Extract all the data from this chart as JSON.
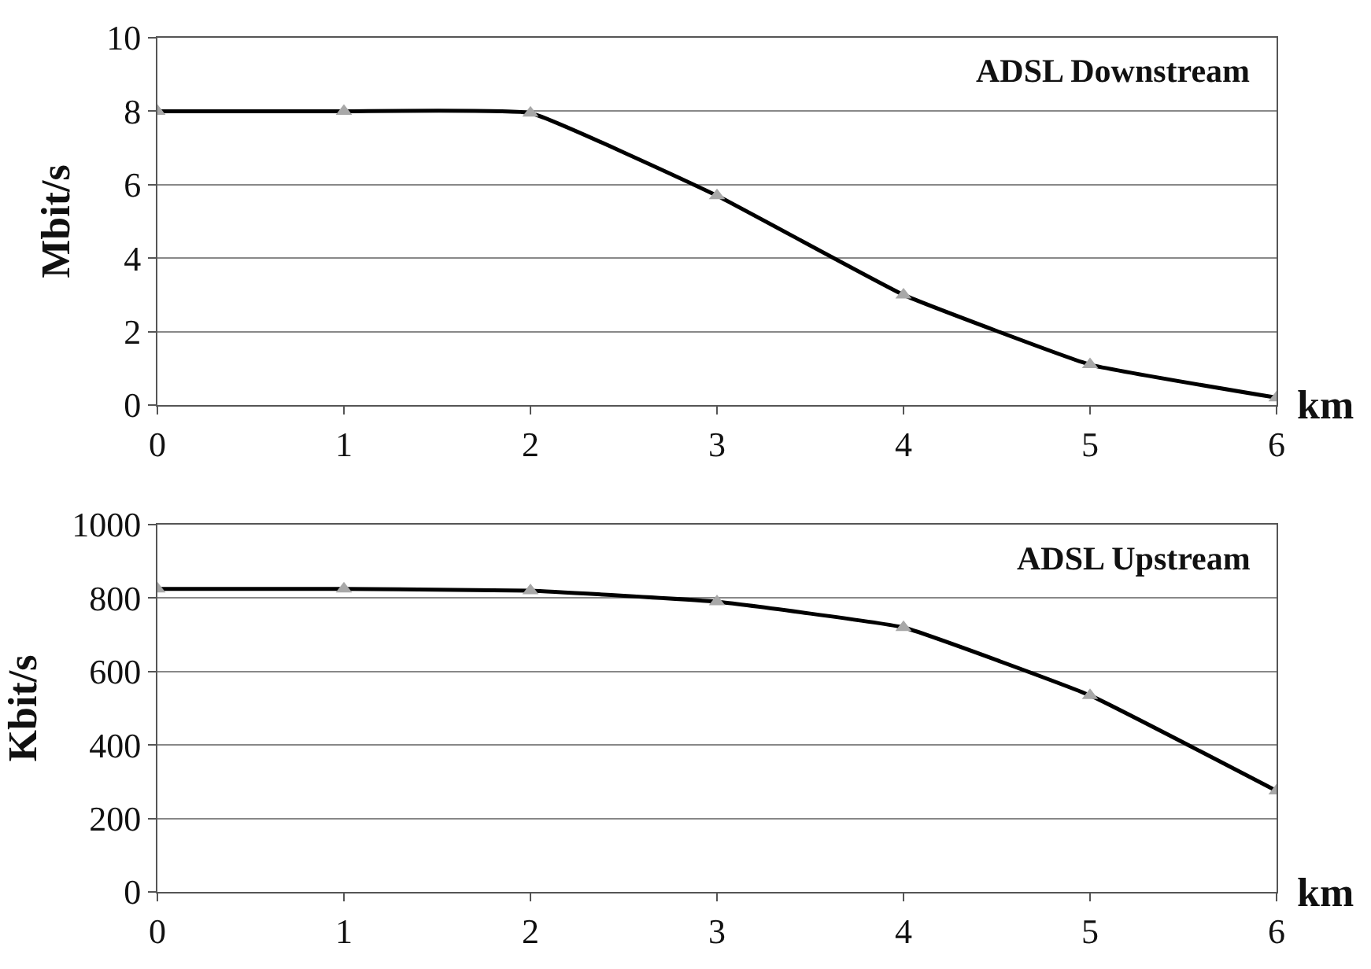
{
  "chart_data": [
    {
      "type": "line",
      "title": "ADSL Downstream",
      "xlabel": "km",
      "ylabel": "Mbit/s",
      "x": [
        0,
        1,
        2,
        3,
        4,
        5,
        6
      ],
      "xlim": [
        0,
        6
      ],
      "xticks": [
        0,
        1,
        2,
        3,
        4,
        5,
        6
      ],
      "ylim": [
        0,
        10
      ],
      "yticks": [
        0,
        2,
        4,
        6,
        8,
        10
      ],
      "grid": "y",
      "marker": "triangle",
      "line_style": "solid",
      "series": [
        {
          "color": "#000000",
          "values": [
            8.0,
            8.0,
            7.95,
            5.7,
            3.0,
            1.1,
            0.2
          ]
        }
      ]
    },
    {
      "type": "line",
      "title": "ADSL Upstream",
      "xlabel": "km",
      "ylabel": "Kbit/s",
      "x": [
        0,
        1,
        2,
        3,
        4,
        5,
        6
      ],
      "xlim": [
        0,
        6
      ],
      "xticks": [
        0,
        1,
        2,
        3,
        4,
        5,
        6
      ],
      "ylim": [
        0,
        1000
      ],
      "yticks": [
        0,
        200,
        400,
        600,
        800,
        1000
      ],
      "grid": "y",
      "marker": "triangle",
      "line_style": "solid",
      "series": [
        {
          "color": "#000000",
          "values": [
            825,
            825,
            820,
            790,
            720,
            535,
            275
          ]
        }
      ]
    }
  ]
}
